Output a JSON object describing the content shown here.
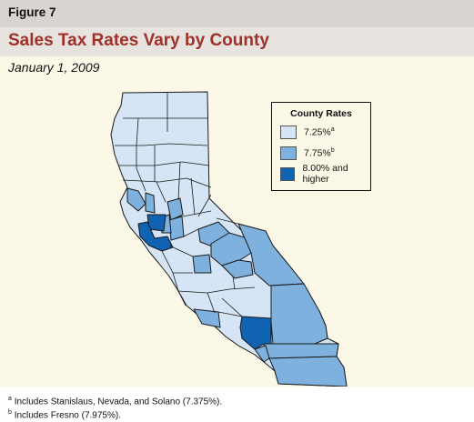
{
  "header": {
    "figure_label": "Figure 7",
    "title": "Sales Tax Rates Vary by County",
    "date": "January 1, 2009"
  },
  "legend": {
    "title": "County Rates",
    "items": [
      {
        "label": "7.25%",
        "note": "a",
        "color": "#d5e5f6"
      },
      {
        "label": "7.75%",
        "note": "b",
        "color": "#7eb1dd"
      },
      {
        "label": "8.00% and higher",
        "note": "",
        "color": "#0f63b0"
      }
    ]
  },
  "footnotes": [
    {
      "mark": "a",
      "text": "Includes Stanislaus, Nevada, and Solano (7.375%)."
    },
    {
      "mark": "b",
      "text": "Includes Fresno (7.975%)."
    }
  ],
  "colors": {
    "title": "#a0302a",
    "panel": "#fbf8e8",
    "outline": "#1a1a1a"
  }
}
